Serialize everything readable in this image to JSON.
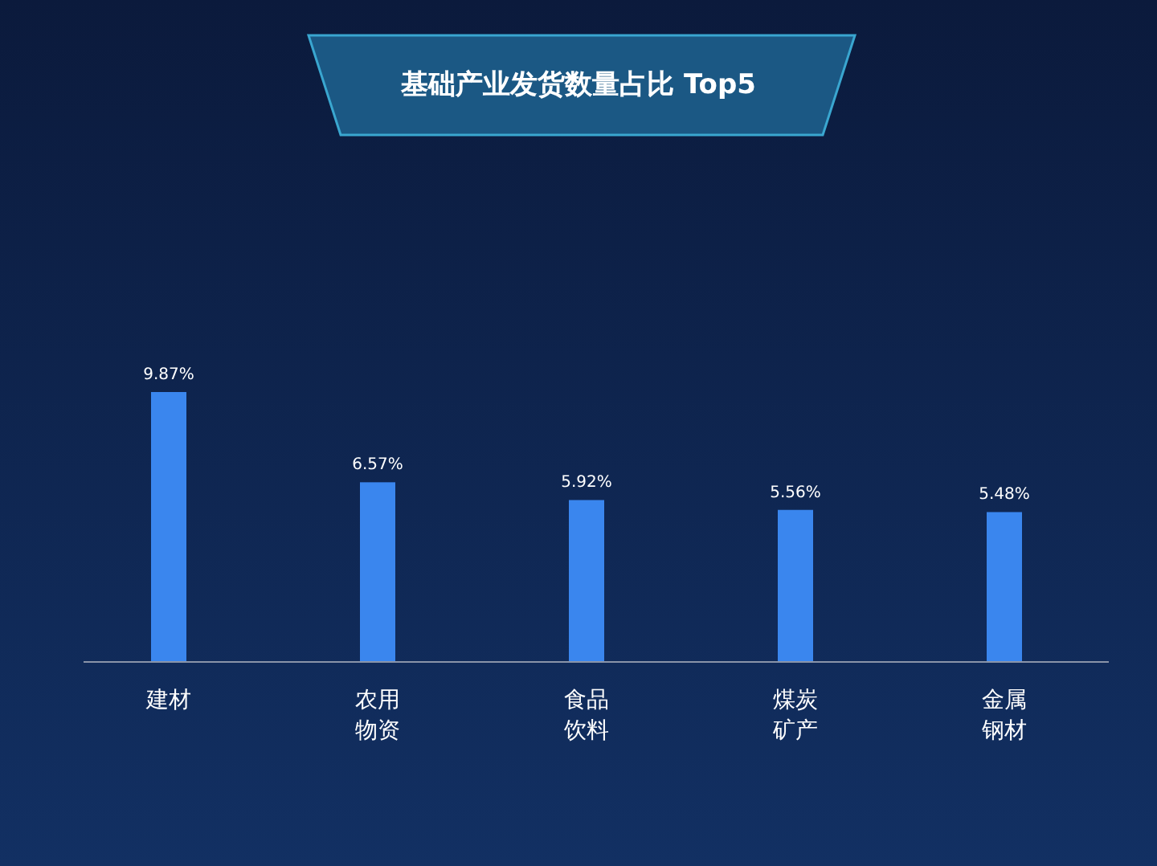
{
  "chart_data": {
    "type": "bar",
    "title": "基础产业发货数量占比 Top5",
    "categories": [
      "建材",
      "农用物资",
      "食品饮料",
      "煤炭矿产",
      "金属钢材"
    ],
    "values": [
      9.87,
      6.57,
      5.92,
      5.56,
      5.48
    ],
    "value_labels": [
      "9.87%",
      "6.57%",
      "5.92%",
      "5.56%",
      "5.48%"
    ],
    "color": "#3a86ee"
  }
}
